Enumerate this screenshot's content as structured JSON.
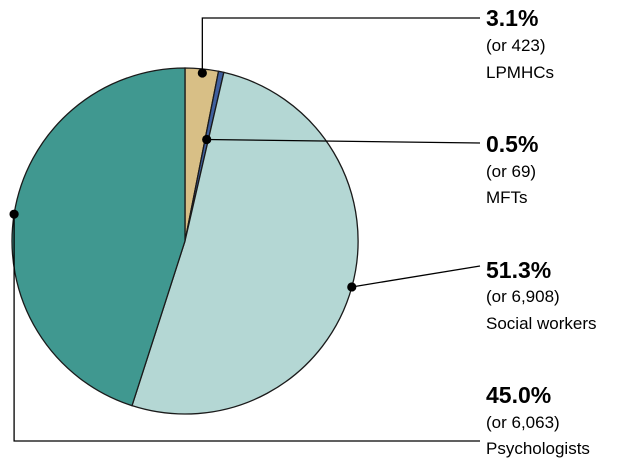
{
  "chart_data": {
    "type": "pie",
    "title": "",
    "start_angle_deg": 0,
    "direction": "clockwise",
    "slices": [
      {
        "name": "LPMHCs",
        "percent": 3.1,
        "count_label": "(or 423)",
        "percent_label": "3.1%",
        "color": "#d8bf86"
      },
      {
        "name": "MFTs",
        "percent": 0.5,
        "count_label": "(or 69)",
        "percent_label": "0.5%",
        "color": "#3f5f9e"
      },
      {
        "name": "Social workers",
        "percent": 51.3,
        "count_label": "(or 6,908)",
        "percent_label": "51.3%",
        "color": "#b4d7d4"
      },
      {
        "name": "Psychologists",
        "percent": 45.0,
        "count_label": "(or 6,063)",
        "percent_label": "45.0%",
        "color": "#409890"
      }
    ]
  }
}
